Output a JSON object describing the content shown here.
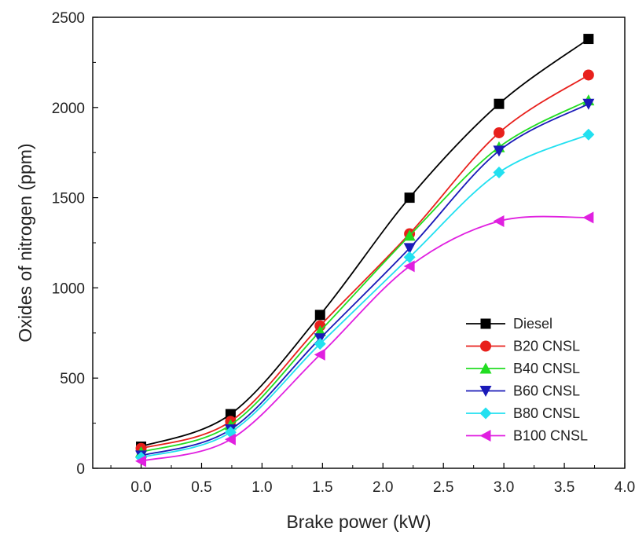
{
  "chart_data": {
    "type": "line",
    "title": "",
    "xlabel": "Brake power (kW)",
    "ylabel": "Oxides of nitrogen (ppm)",
    "xlim": [
      -0.4,
      4.0
    ],
    "ylim": [
      0,
      2500
    ],
    "xticks": [
      "0.0",
      "0.5",
      "1.0",
      "1.5",
      "2.0",
      "2.5",
      "3.0",
      "3.5",
      "4.0"
    ],
    "yticks": [
      "0",
      "500",
      "1000",
      "1500",
      "2000",
      "2500"
    ],
    "x": [
      0.0,
      0.74,
      1.48,
      2.22,
      2.96,
      3.7
    ],
    "legend_position": "bottom-right",
    "grid": false,
    "series": [
      {
        "name": "Diesel",
        "color": "#000000",
        "marker": "square",
        "values": [
          120,
          300,
          850,
          1500,
          2020,
          2380
        ]
      },
      {
        "name": "B20 CNSL",
        "color": "#e8201c",
        "marker": "circle",
        "values": [
          110,
          260,
          790,
          1300,
          1860,
          2180
        ]
      },
      {
        "name": "B40 CNSL",
        "color": "#22dd22",
        "marker": "triangle-up",
        "values": [
          90,
          240,
          760,
          1290,
          1780,
          2040
        ]
      },
      {
        "name": "B60 CNSL",
        "color": "#1a1ab8",
        "marker": "triangle-down",
        "values": [
          70,
          215,
          720,
          1220,
          1760,
          2020
        ]
      },
      {
        "name": "B80 CNSL",
        "color": "#22e0f0",
        "marker": "diamond",
        "values": [
          60,
          200,
          690,
          1170,
          1640,
          1850
        ]
      },
      {
        "name": "B100 CNSL",
        "color": "#e020e0",
        "marker": "triangle-left",
        "values": [
          40,
          160,
          630,
          1120,
          1370,
          1390
        ]
      }
    ]
  }
}
